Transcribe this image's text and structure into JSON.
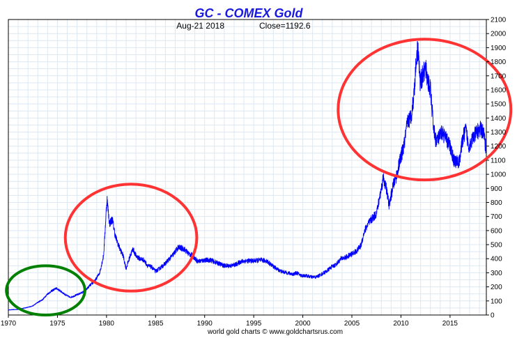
{
  "chart_data": {
    "type": "line",
    "title": "GC - COMEX Gold",
    "subtitle_date": "Aug-21  2018",
    "subtitle_close": "Close=1192.6",
    "footer": "world gold charts © www.goldchartsrus.com",
    "xlim": [
      1970,
      2018.7
    ],
    "ylim": [
      0,
      2100
    ],
    "x_ticks": [
      1970,
      1975,
      1980,
      1985,
      1990,
      1995,
      2000,
      2005,
      2010,
      2015
    ],
    "y_ticks": [
      0,
      100,
      200,
      300,
      400,
      500,
      600,
      700,
      800,
      900,
      1000,
      1100,
      1200,
      1300,
      1400,
      1500,
      1600,
      1700,
      1800,
      1900,
      2000,
      2100
    ],
    "grid": true,
    "y_axis_side": "right",
    "series": [
      {
        "color": "#0000ff",
        "x": [
          1970.0,
          1971.0,
          1972.0,
          1972.5,
          1973.0,
          1973.5,
          1974.0,
          1974.5,
          1974.9,
          1975.3,
          1975.8,
          1976.3,
          1976.7,
          1977.2,
          1977.8,
          1978.3,
          1978.8,
          1979.3,
          1979.7,
          1980.05,
          1980.3,
          1980.6,
          1980.9,
          1981.3,
          1981.7,
          1982.0,
          1982.4,
          1982.7,
          1983.0,
          1983.4,
          1983.8,
          1984.2,
          1984.6,
          1985.0,
          1985.4,
          1985.9,
          1986.3,
          1986.8,
          1987.3,
          1987.9,
          1988.3,
          1988.8,
          1989.3,
          1990.0,
          1990.6,
          1991.3,
          1992.0,
          1992.7,
          1993.2,
          1993.7,
          1994.3,
          1995.0,
          1995.7,
          1996.3,
          1996.9,
          1997.3,
          1997.8,
          1998.4,
          1999.0,
          1999.4,
          1999.8,
          2000.3,
          2000.9,
          2001.4,
          2001.9,
          2002.4,
          2002.9,
          2003.4,
          2003.9,
          2004.4,
          2004.9,
          2005.4,
          2005.9,
          2006.3,
          2006.6,
          2007.0,
          2007.5,
          2008.0,
          2008.2,
          2008.5,
          2008.8,
          2009.2,
          2009.6,
          2009.9,
          2010.3,
          2010.7,
          2011.0,
          2011.3,
          2011.6,
          2011.75,
          2011.95,
          2012.2,
          2012.5,
          2012.8,
          2013.0,
          2013.3,
          2013.5,
          2013.8,
          2014.2,
          2014.6,
          2015.0,
          2015.4,
          2015.9,
          2016.3,
          2016.6,
          2016.9,
          2017.3,
          2017.7,
          2018.1,
          2018.4,
          2018.64
        ],
        "y": [
          36,
          40,
          55,
          65,
          90,
          110,
          150,
          175,
          190,
          170,
          145,
          125,
          135,
          150,
          170,
          210,
          240,
          300,
          420,
          830,
          650,
          680,
          560,
          480,
          420,
          330,
          420,
          470,
          420,
          400,
          390,
          350,
          340,
          310,
          330,
          360,
          390,
          430,
          480,
          470,
          440,
          420,
          380,
          390,
          390,
          370,
          350,
          350,
          360,
          380,
          385,
          385,
          390,
          385,
          350,
          330,
          310,
          300,
          290,
          300,
          280,
          280,
          270,
          270,
          290,
          310,
          340,
          360,
          400,
          410,
          430,
          450,
          490,
          600,
          640,
          680,
          720,
          900,
          980,
          900,
          780,
          920,
          1000,
          1100,
          1200,
          1380,
          1400,
          1550,
          1850,
          1900,
          1650,
          1700,
          1750,
          1650,
          1600,
          1350,
          1250,
          1250,
          1300,
          1250,
          1200,
          1100,
          1080,
          1250,
          1320,
          1200,
          1250,
          1300,
          1320,
          1300,
          1192.6
        ]
      }
    ],
    "annotations": [
      {
        "shape": "ellipse",
        "color": "#008000",
        "x_center": 1973.8,
        "y_center": 175,
        "x_radius": 4.0,
        "y_radius": 175
      },
      {
        "shape": "ellipse",
        "color": "#ff3333",
        "x_center": 1982.5,
        "y_center": 550,
        "x_radius": 6.7,
        "y_radius": 380
      },
      {
        "shape": "ellipse",
        "color": "#ff3333",
        "x_center": 2012.4,
        "y_center": 1460,
        "x_radius": 8.8,
        "y_radius": 500
      }
    ]
  }
}
